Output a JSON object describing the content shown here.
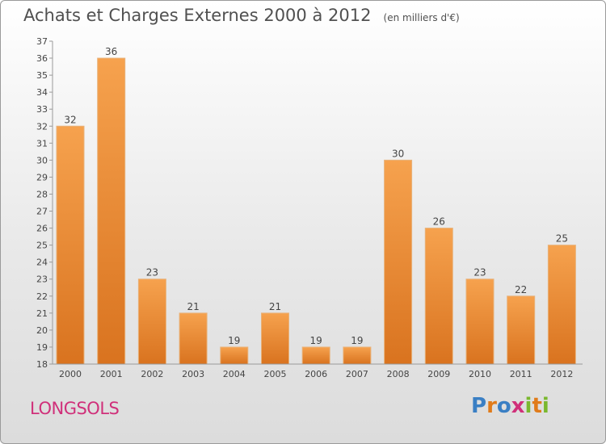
{
  "header": {
    "title": "Achats et Charges Externes 2000 à 2012",
    "subtitle": "(en milliers d'€)"
  },
  "footer": {
    "commune": "LONGSOLS",
    "logo_text": "Proxiti"
  },
  "colors": {
    "bar_light": "#f6a24e",
    "bar_dark": "#d9731f",
    "commune": "#d0307a"
  },
  "chart_data": {
    "type": "bar",
    "title": "Achats et Charges Externes 2000 à 2012",
    "subtitle": "(en milliers d'€)",
    "categories": [
      "2000",
      "2001",
      "2002",
      "2003",
      "2004",
      "2005",
      "2006",
      "2007",
      "2008",
      "2009",
      "2010",
      "2011",
      "2012"
    ],
    "values": [
      32,
      36,
      23,
      21,
      19,
      21,
      19,
      19,
      30,
      26,
      23,
      22,
      25
    ],
    "data_labels": [
      "32",
      "36",
      "23",
      "21",
      "19",
      "21",
      "19",
      "19",
      "30",
      "26",
      "23",
      "22",
      "25"
    ],
    "ylim": [
      18,
      37
    ],
    "yticks": [
      "18",
      "19",
      "20",
      "21",
      "22",
      "23",
      "24",
      "25",
      "26",
      "27",
      "28",
      "29",
      "30",
      "31",
      "32",
      "33",
      "34",
      "35",
      "36",
      "37"
    ],
    "xlabel": "",
    "ylabel": "",
    "grid": false,
    "legend": "none"
  }
}
